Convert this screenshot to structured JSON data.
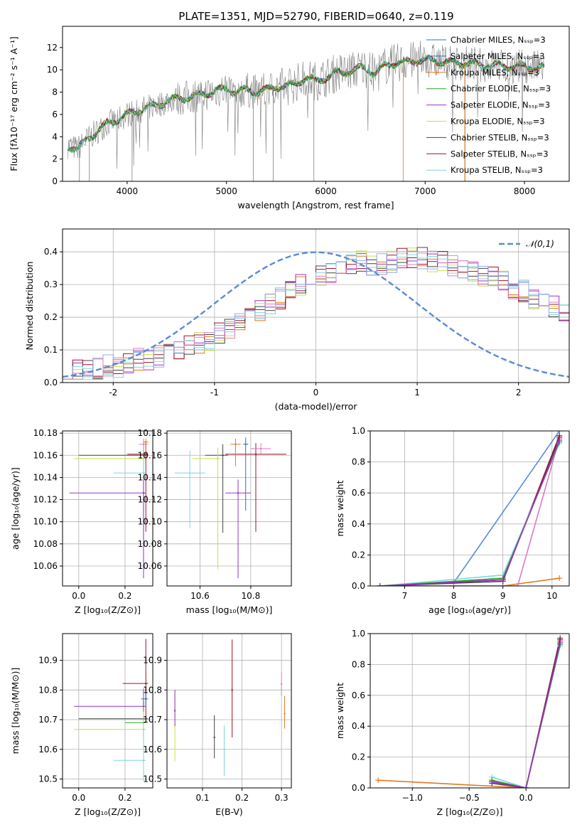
{
  "figure_title": "PLATE=1351, MJD=52790, FIBERID=0640, z=0.119",
  "colors": {
    "Chabrier MILES": "#1f77b4",
    "Salpeter MILES": "#1f77b4",
    "Kroupa MILES": "#e07b24",
    "Chabrier ELODIE": "#2ca02c",
    "Salpeter ELODIE": "#9b30c6",
    "Kroupa ELODIE": "#c8e04a",
    "Chabrier STELIB": "#444444",
    "Salpeter STELIB": "#a0102a",
    "Kroupa STELIB": "#7fd6db",
    "data": "#808080",
    "gauss": "#5b8ad6",
    "extra": "#e377c2"
  },
  "chart_data": [
    {
      "type": "line",
      "xlabel": "wavelength [Angstrom, rest frame]",
      "ylabel": "Flux [fλ10⁻¹⁷ erg cm⁻² s⁻¹ A⁻¹]",
      "xlim": [
        3350,
        8450
      ],
      "ylim": [
        0,
        13.9
      ],
      "xticks": [
        4000,
        5000,
        6000,
        7000,
        8000
      ],
      "yticks": [
        0,
        2,
        4,
        6,
        8,
        10,
        12
      ],
      "legend_position": "top-right",
      "legend": [
        "Chabrier MILES, Nₛₛₚ=3",
        "Salpeter MILES, Nₛₛₚ=3",
        "Kroupa MILES, Nₛₛₚ=3",
        "Chabrier ELODIE, Nₛₛₚ=3",
        "Salpeter ELODIE, Nₛₛₚ=3",
        "Kroupa ELODIE, Nₛₛₚ=3",
        "Chabrier STELIB, Nₛₛₚ=3",
        "Salpeter STELIB, Nₛₛₚ=3",
        "Kroupa STELIB, Nₛₛₚ=3"
      ],
      "model_continuum": [
        [
          3400,
          3.2
        ],
        [
          3500,
          2.9
        ],
        [
          3600,
          3.8
        ],
        [
          3700,
          4.5
        ],
        [
          3800,
          5.2
        ],
        [
          3900,
          5.5
        ],
        [
          4000,
          6.0
        ],
        [
          4100,
          6.3
        ],
        [
          4200,
          6.6
        ],
        [
          4300,
          6.8
        ],
        [
          4400,
          7.2
        ],
        [
          4500,
          7.4
        ],
        [
          4600,
          7.5
        ],
        [
          4700,
          7.7
        ],
        [
          4800,
          7.9
        ],
        [
          4900,
          8.1
        ],
        [
          5000,
          8.3
        ],
        [
          5100,
          8.0
        ],
        [
          5200,
          8.2
        ],
        [
          5300,
          8.0
        ],
        [
          5400,
          8.2
        ],
        [
          5500,
          8.5
        ],
        [
          5600,
          8.5
        ],
        [
          5700,
          8.8
        ],
        [
          5800,
          9.3
        ],
        [
          5900,
          9.0
        ],
        [
          6000,
          9.3
        ],
        [
          6100,
          9.7
        ],
        [
          6200,
          9.8
        ],
        [
          6300,
          10.0
        ],
        [
          6400,
          10.2
        ],
        [
          6500,
          9.6
        ],
        [
          6600,
          10.4
        ],
        [
          6700,
          10.6
        ],
        [
          6800,
          10.7
        ],
        [
          6900,
          10.8
        ],
        [
          7000,
          10.9
        ],
        [
          7100,
          10.8
        ],
        [
          7200,
          10.7
        ],
        [
          7300,
          10.6
        ],
        [
          7400,
          10.6
        ],
        [
          7500,
          10.5
        ],
        [
          7600,
          10.4
        ],
        [
          7700,
          10.4
        ],
        [
          7800,
          10.3
        ],
        [
          7900,
          10.3
        ],
        [
          8000,
          10.3
        ],
        [
          8100,
          10.2
        ],
        [
          8200,
          10.2
        ]
      ],
      "data_dropouts": [
        3520,
        3620,
        4050,
        5270,
        5470,
        5880,
        6780,
        7400
      ]
    },
    {
      "type": "histogram",
      "xlabel": "(data-model)/error",
      "ylabel": "Normed distribution",
      "xlim": [
        -2.5,
        2.5
      ],
      "ylim": [
        0,
        0.47
      ],
      "xticks": [
        -2,
        -1,
        0,
        1,
        2
      ],
      "yticks": [
        0.0,
        0.1,
        0.2,
        0.3,
        0.4
      ],
      "legend_position": "top-right",
      "legend": [
        "𝒩(0,1)"
      ],
      "gaussian": {
        "mean": 0,
        "sigma": 1
      },
      "bin_width": 0.1,
      "bins_start": -2.5,
      "envelope_heights": [
        0.04,
        0.04,
        0.04,
        0.04,
        0.05,
        0.05,
        0.06,
        0.07,
        0.07,
        0.08,
        0.09,
        0.1,
        0.11,
        0.12,
        0.13,
        0.15,
        0.16,
        0.18,
        0.2,
        0.22,
        0.24,
        0.26,
        0.28,
        0.3,
        0.32,
        0.33,
        0.34,
        0.35,
        0.36,
        0.37,
        0.36,
        0.36,
        0.37,
        0.38,
        0.38,
        0.38,
        0.37,
        0.37,
        0.36,
        0.35,
        0.34,
        0.33,
        0.32,
        0.31,
        0.29,
        0.28,
        0.26,
        0.24,
        0.23,
        0.21,
        0.19,
        0.17,
        0.15,
        0.14,
        0.12,
        0.11,
        0.1,
        0.09,
        0.08,
        0.07
      ]
    },
    {
      "type": "scatter",
      "name": "age-vs-Z",
      "xlabel": "Z [log₁₀(Z/Z⊙)]",
      "ylabel": "age  [log₁₀(age/yr)]",
      "xlim": [
        -0.07,
        0.32
      ],
      "ylim": [
        10.042,
        10.182
      ],
      "xticks": [
        0.0,
        0.2
      ],
      "xticklabels": [
        "0.0",
        "0.2"
      ],
      "yticks": [
        10.06,
        10.08,
        10.1,
        10.12,
        10.14,
        10.16,
        10.18
      ],
      "points": [
        {
          "x": 0.28,
          "y": 10.16,
          "xerr": [
            0.28,
            0.02
          ],
          "yerr": [
            0.07,
            0.012
          ],
          "color": "#444444"
        },
        {
          "x": 0.28,
          "y": 10.157,
          "xerr": [
            0.3,
            0.01
          ],
          "yerr": [
            0.09,
            0.018
          ],
          "color": "#c8e04a"
        },
        {
          "x": 0.29,
          "y": 10.161,
          "xerr": [
            0.08,
            0.01
          ],
          "yerr": [
            0.07,
            0.01
          ],
          "color": "#a0102a"
        },
        {
          "x": 0.28,
          "y": 10.144,
          "xerr": [
            0.13,
            0.01
          ],
          "yerr": [
            0.07,
            0.02
          ],
          "color": "#7fd6db"
        },
        {
          "x": 0.28,
          "y": 10.126,
          "xerr": [
            0.32,
            0.01
          ],
          "yerr": [
            0.077,
            0.012
          ],
          "color": "#9b30c6"
        },
        {
          "x": 0.28,
          "y": 10.17,
          "xerr": [
            0.02,
            0.02
          ],
          "yerr": [
            0.01,
            0.005
          ],
          "color": "#e377c2"
        },
        {
          "x": 0.29,
          "y": 10.172,
          "xerr": [
            0.01,
            0.01
          ],
          "yerr": [
            0.01,
            0.003
          ],
          "color": "#e07b24"
        }
      ]
    },
    {
      "type": "scatter",
      "name": "age-vs-mass",
      "xlabel": "mass [log₁₀(M/M⊙)]",
      "ylabel": "",
      "xlim": [
        10.47,
        10.96
      ],
      "ylim": [
        10.042,
        10.182
      ],
      "xticks": [
        10.6,
        10.8
      ],
      "xticklabels": [
        "10.6",
        "10.8"
      ],
      "yticks": [
        10.06,
        10.08,
        10.1,
        10.12,
        10.14,
        10.16,
        10.18
      ],
      "points": [
        {
          "x": 10.69,
          "y": 10.16,
          "xerr": [
            0.07,
            0.02
          ],
          "yerr": [
            0.07,
            0.01
          ],
          "color": "#444444"
        },
        {
          "x": 10.67,
          "y": 10.157,
          "xerr": [
            0.1,
            0.01
          ],
          "yerr": [
            0.1,
            0.01
          ],
          "color": "#c8e04a"
        },
        {
          "x": 10.82,
          "y": 10.161,
          "xerr": [
            0.12,
            0.12
          ],
          "yerr": [
            0.07,
            0.01
          ],
          "color": "#a0102a"
        },
        {
          "x": 10.56,
          "y": 10.144,
          "xerr": [
            0.06,
            0.06
          ],
          "yerr": [
            0.05,
            0.02
          ],
          "color": "#7fd6db"
        },
        {
          "x": 10.75,
          "y": 10.126,
          "xerr": [
            0.05,
            0.05
          ],
          "yerr": [
            0.077,
            0.012
          ],
          "color": "#9b30c6"
        },
        {
          "x": 10.74,
          "y": 10.17,
          "xerr": [
            0.02,
            0.02
          ],
          "yerr": [
            0.02,
            0.005
          ],
          "color": "#e07b24"
        },
        {
          "x": 10.78,
          "y": 10.17,
          "xerr": [
            0.01,
            0.01
          ],
          "yerr": [
            0.06,
            0.006
          ],
          "color": "#1f77b4"
        },
        {
          "x": 10.84,
          "y": 10.166,
          "xerr": [
            0.04,
            0.04
          ],
          "yerr": [
            0.005,
            0.005
          ],
          "color": "#e377c2"
        }
      ]
    },
    {
      "type": "line",
      "name": "mass-weight-vs-age",
      "xlabel": "age  [log₁₀(age/yr)]",
      "ylabel": "mass weight",
      "xlim": [
        6.3,
        10.35
      ],
      "ylim": [
        0,
        1.0
      ],
      "xticks": [
        7,
        8,
        9,
        10
      ],
      "yticks": [
        0.0,
        0.2,
        0.4,
        0.6,
        0.8,
        1.0
      ],
      "series": [
        {
          "x": [
            6.5,
            9.0,
            10.15
          ],
          "y": [
            0.0,
            0.0,
            0.05
          ],
          "color": "#e07b24"
        },
        {
          "x": [
            6.5,
            9.3,
            10.15
          ],
          "y": [
            0.0,
            0.0,
            0.95
          ],
          "color": "#e377c2"
        },
        {
          "x": [
            6.5,
            8.0,
            10.15
          ],
          "y": [
            0.0,
            0.02,
            1.0
          ],
          "color": "#5b8ad6"
        },
        {
          "x": [
            6.5,
            9.0,
            10.15
          ],
          "y": [
            0.0,
            0.03,
            0.97
          ],
          "color": "#444444"
        },
        {
          "x": [
            6.5,
            9.0,
            10.15
          ],
          "y": [
            0.0,
            0.04,
            0.96
          ],
          "color": "#a0102a"
        },
        {
          "x": [
            6.5,
            9.0,
            10.15
          ],
          "y": [
            0.0,
            0.07,
            0.92
          ],
          "color": "#7fd6db"
        },
        {
          "x": [
            6.5,
            9.0,
            10.15
          ],
          "y": [
            0.0,
            0.05,
            0.93
          ],
          "color": "#2ca02c"
        },
        {
          "x": [
            6.5,
            9.0,
            10.15
          ],
          "y": [
            0.0,
            0.04,
            0.94
          ],
          "color": "#9b30c6"
        }
      ]
    },
    {
      "type": "scatter",
      "name": "mass-vs-Z",
      "xlabel": "Z [log₁₀(Z/Z⊙)]",
      "ylabel": "mass [log₁₀(M/M⊙)]",
      "xlim": [
        -0.07,
        0.32
      ],
      "ylim": [
        10.47,
        10.99
      ],
      "xticks": [
        0.0,
        0.2
      ],
      "xticklabels": [
        "0.0",
        "0.2"
      ],
      "yticks": [
        10.5,
        10.6,
        10.7,
        10.8,
        10.9
      ],
      "points": [
        {
          "x": 0.29,
          "y": 10.822,
          "xerr": [
            0.1,
            0.01
          ],
          "yerr": [
            0.12,
            0.15
          ],
          "color": "#a0102a"
        },
        {
          "x": 0.28,
          "y": 10.745,
          "xerr": [
            0.3,
            0.01
          ],
          "yerr": [
            0.06,
            0.06
          ],
          "color": "#9b30c6"
        },
        {
          "x": 0.28,
          "y": 10.703,
          "xerr": [
            0.28,
            0.02
          ],
          "yerr": [
            0.06,
            0.06
          ],
          "color": "#444444"
        },
        {
          "x": 0.28,
          "y": 10.69,
          "xerr": [
            0.08,
            0.01
          ],
          "yerr": [
            0.06,
            0.06
          ],
          "color": "#2ca02c"
        },
        {
          "x": 0.28,
          "y": 10.667,
          "xerr": [
            0.3,
            0.01
          ],
          "yerr": [
            0.06,
            0.06
          ],
          "color": "#c8e04a"
        },
        {
          "x": 0.28,
          "y": 10.563,
          "xerr": [
            0.13,
            0.01
          ],
          "yerr": [
            0.07,
            0.11
          ],
          "color": "#7fd6db"
        },
        {
          "x": 0.29,
          "y": 10.77,
          "xerr": [
            0.02,
            0.01
          ],
          "yerr": [
            0.02,
            0.02
          ],
          "color": "#1f77b4"
        }
      ]
    },
    {
      "type": "scatter",
      "name": "mass-vs-EBV",
      "xlabel": "E(B-V)",
      "ylabel": "",
      "xlim": [
        0.01,
        0.325
      ],
      "ylim": [
        10.47,
        10.99
      ],
      "xticks": [
        0.1,
        0.2,
        0.3
      ],
      "xticklabels": [
        "0.1",
        "0.2",
        "0.3"
      ],
      "yticks": [
        10.5,
        10.6,
        10.7,
        10.8,
        10.9
      ],
      "points": [
        {
          "x": 0.03,
          "y": 10.68,
          "yerr": [
            0.12,
            0.12
          ],
          "color": "#c8e04a"
        },
        {
          "x": 0.03,
          "y": 10.73,
          "yerr": [
            0.05,
            0.07
          ],
          "color": "#9b30c6"
        },
        {
          "x": 0.13,
          "y": 10.64,
          "yerr": [
            0.07,
            0.075
          ],
          "color": "#444444"
        },
        {
          "x": 0.155,
          "y": 10.6,
          "yerr": [
            0.09,
            0.08
          ],
          "color": "#7fd6db"
        },
        {
          "x": 0.175,
          "y": 10.8,
          "yerr": [
            0.16,
            0.17
          ],
          "color": "#a0102a"
        },
        {
          "x": 0.3,
          "y": 10.82,
          "yerr": [
            0.04,
            0.04
          ],
          "color": "#e377c2"
        },
        {
          "x": 0.308,
          "y": 10.72,
          "yerr": [
            0.05,
            0.06
          ],
          "color": "#e07b24"
        }
      ]
    },
    {
      "type": "line",
      "name": "mass-weight-vs-Z",
      "xlabel": "Z [log₁₀(Z/Z⊙)]",
      "ylabel": "mass weight",
      "xlim": [
        -1.37,
        0.38
      ],
      "ylim": [
        0,
        1.0
      ],
      "xticks": [
        -1.0,
        -0.5,
        0.0
      ],
      "xticklabels": [
        "−1.0",
        "−0.5",
        "0.0"
      ],
      "yticks": [
        0.0,
        0.2,
        0.4,
        0.6,
        0.8,
        1.0
      ],
      "series": [
        {
          "x": [
            -1.3,
            0.0,
            0.3
          ],
          "y": [
            0.05,
            0.0,
            0.95
          ],
          "color": "#e07b24"
        },
        {
          "x": [
            -0.3,
            0.0,
            0.3
          ],
          "y": [
            0.03,
            0.0,
            0.97
          ],
          "color": "#444444"
        },
        {
          "x": [
            -0.3,
            0.0,
            0.3
          ],
          "y": [
            0.04,
            0.0,
            0.96
          ],
          "color": "#a0102a"
        },
        {
          "x": [
            -0.3,
            0.0,
            0.3
          ],
          "y": [
            0.07,
            0.0,
            0.92
          ],
          "color": "#7fd6db"
        },
        {
          "x": [
            -0.3,
            0.0,
            0.3
          ],
          "y": [
            0.05,
            0.0,
            0.93
          ],
          "color": "#2ca02c"
        },
        {
          "x": [
            -0.3,
            0.0,
            0.3
          ],
          "y": [
            0.04,
            0.0,
            0.94
          ],
          "color": "#9b30c6"
        }
      ]
    }
  ]
}
